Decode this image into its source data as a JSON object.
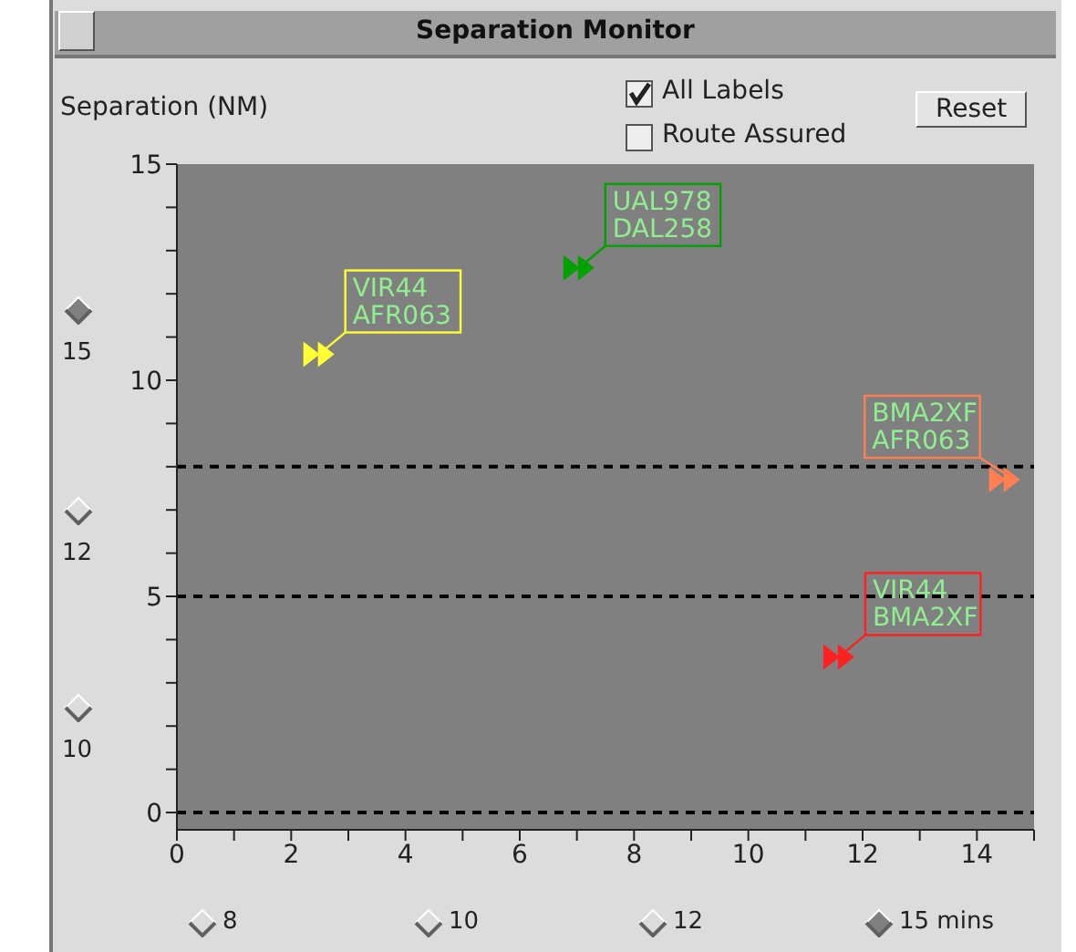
{
  "chart_data": {
    "type": "scatter",
    "title": "Separation Monitor",
    "ylabel": "Separation (NM)",
    "x": [
      2.5,
      7.05,
      14.5,
      11.6
    ],
    "values": [
      10.6,
      12.6,
      7.7,
      3.6
    ],
    "colors": [
      "#ffff33",
      "#00a000",
      "#ff7f50",
      "#ff2020"
    ],
    "marker": "triangle",
    "xlim": [
      0,
      15
    ],
    "ylim": [
      -0.4,
      15
    ],
    "xticks": [
      0,
      {
        "value": 1,
        "label": null
      },
      2,
      {
        "value": 3,
        "label": null
      },
      4,
      {
        "value": 5,
        "label": null
      },
      6,
      {
        "value": 7,
        "label": null
      },
      8,
      {
        "value": 9,
        "label": null
      },
      10,
      {
        "value": 11,
        "label": null
      },
      12,
      {
        "value": 13,
        "label": null
      },
      14,
      {
        "value": 15,
        "label": null
      }
    ],
    "yticks": [
      0,
      {
        "value": 1,
        "label": null
      },
      {
        "value": 2,
        "label": null
      },
      {
        "value": 3,
        "label": null
      },
      {
        "value": 4,
        "label": null
      },
      5,
      {
        "value": 6,
        "label": null
      },
      {
        "value": 7,
        "label": null
      },
      {
        "value": 8,
        "label": null
      },
      {
        "value": 9,
        "label": null
      },
      10,
      {
        "value": 11,
        "label": null
      },
      {
        "value": 12,
        "label": null
      },
      {
        "value": 13,
        "label": null
      },
      {
        "value": 14,
        "label": null
      },
      15
    ],
    "ref_lines": [
      {
        "axis": "y",
        "value": 0,
        "line_style": "dashed",
        "color": "#000000"
      },
      {
        "axis": "y",
        "value": 5,
        "line_style": "dashed",
        "color": "#000000"
      },
      {
        "axis": "y",
        "value": 8,
        "line_style": "dashed",
        "color": "#000000"
      }
    ],
    "grid": false,
    "annotations": [
      {
        "text": "VIR44\nAFR063",
        "x": 2.5,
        "y": 10.6
      },
      {
        "text": "UAL978\nDAL258",
        "x": 7.05,
        "y": 12.6
      },
      {
        "text": "BMA2XF\nAFR063",
        "x": 14.5,
        "y": 7.7
      },
      {
        "text": "VIR44\nBMA2XF",
        "x": 11.6,
        "y": 3.6
      },
      "All Labels",
      "Route Assured",
      "Reset",
      "15",
      "12",
      "10",
      "8",
      "10",
      "12",
      "15 mins"
    ]
  }
}
